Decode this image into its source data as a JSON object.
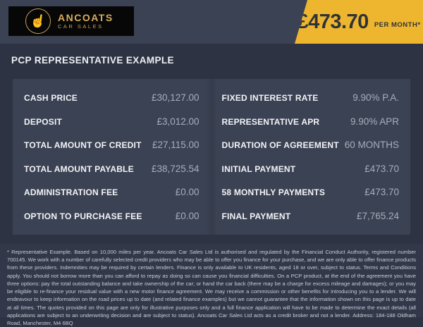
{
  "header": {
    "logo": {
      "name": "ANCOATS",
      "subtitle": "CAR SALES",
      "emblem_glyph": "☝"
    },
    "price_flag": {
      "amount": "£473.70",
      "period": "PER MONTH*",
      "bg_color": "#eeb62f"
    }
  },
  "section": {
    "title": "PCP REPRESENTATIVE EXAMPLE"
  },
  "finance_table": {
    "left_column": [
      {
        "label": "CASH PRICE",
        "value": "£30,127.00"
      },
      {
        "label": "DEPOSIT",
        "value": "£3,012.00"
      },
      {
        "label": "TOTAL AMOUNT OF CREDIT",
        "value": "£27,115.00"
      },
      {
        "label": "TOTAL AMOUNT PAYABLE",
        "value": "£38,725.54"
      },
      {
        "label": "ADMINISTRATION FEE",
        "value": "£0.00"
      },
      {
        "label": "OPTION TO PURCHASE FEE",
        "value": "£0.00"
      }
    ],
    "right_column": [
      {
        "label": "FIXED INTEREST RATE",
        "value": "9.90% P.A."
      },
      {
        "label": "REPRESENTATIVE APR",
        "value": "9.90% APR"
      },
      {
        "label": "DURATION OF AGREEMENT",
        "value": "60 MONTHS"
      },
      {
        "label": "INITIAL PAYMENT",
        "value": "£473.70"
      },
      {
        "label": "58 MONTHLY PAYMENTS",
        "value": "£473.70"
      },
      {
        "label": "FINAL PAYMENT",
        "value": "£7,765.24"
      }
    ]
  },
  "footnote": "* Representative Example. Based on 10,000 miles per year. Ancoats Car Sales Ltd is authorised and regulated by the Financial Conduct Authority, registered number 700145. We work with a number of carefully selected credit providers who may be able to offer you finance for your purchase, and we are only able to offer finance products from these providers. Indemnities may be required by certain lenders. Finance is only available to UK residents, aged 18 or over, subject to status. Terms and Conditions apply. You should not borrow more than you can afford to repay as doing so can cause you financial difficulties. On a PCP product, at the end of the agreement you have three options: pay the total outstanding balance and take ownership of the car; or hand the car back (there may be a charge for excess mileage and damages); or you may be eligible to re-finance your residual value with a new motor finance agreement. We may receive a commission or other benefits for introducing you to a lender. We will endeavour to keep information on the road prices up to date (and related finance examples) but we cannot guarantee that the information shown on this page is up to date at all times. The quotes provided on this page are only for illustrative purposes only and a full finance application will have to be made to determine the exact details (all applications are subject to an underwriting decision and are subject to status). Ancoats Car Sales Ltd acts as a credit broker and not a lender. Address: 184-188 Oldham Road, Manchester, M4 6BQ",
  "colors": {
    "body_bg": "#2d3343",
    "header_bg": "#3b4253",
    "panel_bg": "#3b4254",
    "accent_yellow": "#eeb62f",
    "label_text": "#f3f4f6",
    "value_text": "#a8adb9",
    "logo_gold": "#d8ac5e"
  }
}
